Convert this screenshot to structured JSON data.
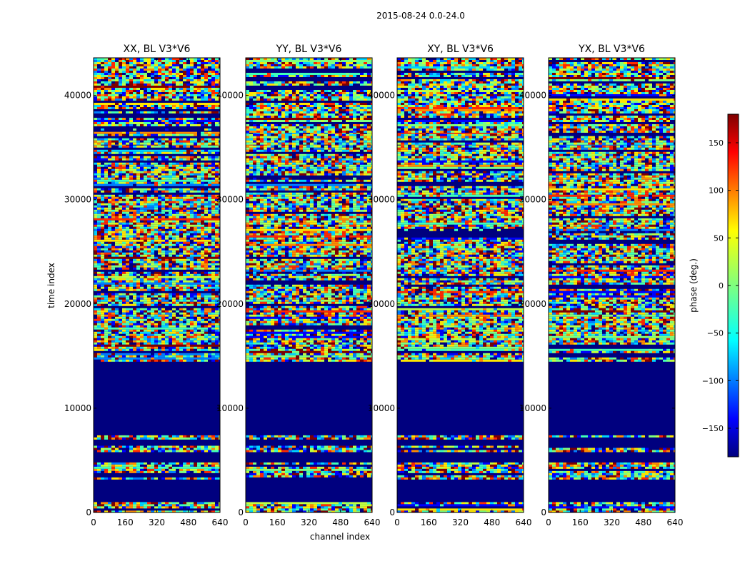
{
  "figure": {
    "suptitle": "2015-08-24 0.0-24.0"
  },
  "chart_data": {
    "type": "heatmap",
    "panels": [
      {
        "title": "XX, BL V3*V6"
      },
      {
        "title": "YY, BL V3*V6"
      },
      {
        "title": "XY, BL V3*V6"
      },
      {
        "title": "YX, BL V3*V6"
      }
    ],
    "xlabel": "channel index",
    "ylabel": "time index",
    "xlim": [
      0,
      640
    ],
    "ylim": [
      0,
      43600
    ],
    "xticks": [
      0,
      160,
      320,
      480,
      640
    ],
    "yticks": [
      0,
      10000,
      20000,
      30000,
      40000
    ],
    "colorbar": {
      "label": "phase (deg.)",
      "range": [
        -180,
        180
      ],
      "ticks": [
        -150,
        -100,
        -50,
        0,
        50,
        100,
        150
      ],
      "tick_labels": [
        "−150",
        "−100",
        "−50",
        "0",
        "50",
        "100",
        "150"
      ],
      "colormap": "jet"
    },
    "colors": {
      "background_phase": "#00007f",
      "noise_palette": [
        "#0000ff",
        "#0080ff",
        "#00d4ff",
        "#40ffb8",
        "#7fff7f",
        "#c0ff40",
        "#ffe600",
        "#ff8c00",
        "#ff2a00",
        "#7f0000",
        "#00007f"
      ]
    }
  }
}
